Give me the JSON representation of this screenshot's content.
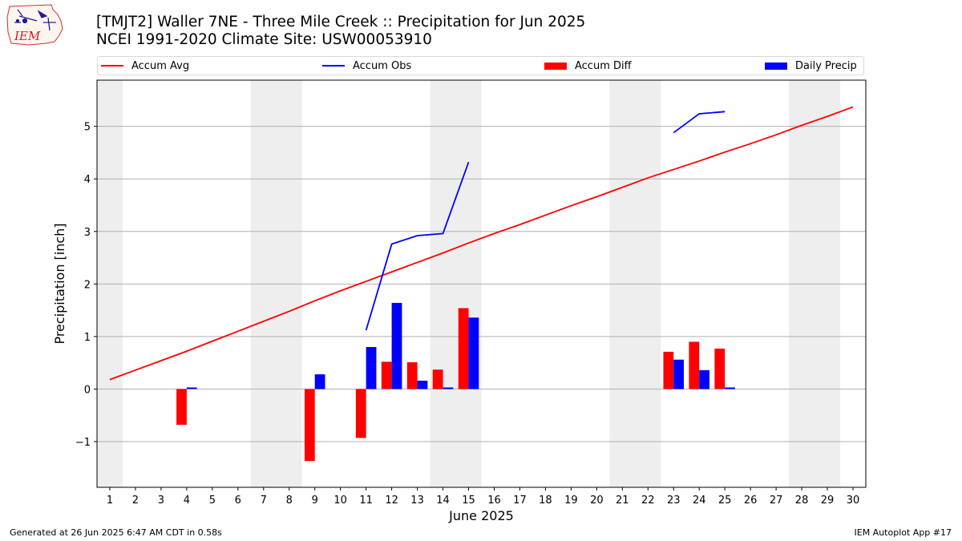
{
  "header": {
    "title_line1": "[TMJT2] Waller 7NE - Three Mile Creek :: Precipitation for Jun 2025",
    "title_line2": "NCEI 1991-2020 Climate Site: USW00053910",
    "logo_text": "IEM"
  },
  "footer": {
    "generated": "Generated at 26 Jun 2025 6:47 AM CDT in 0.58s",
    "app": "IEM Autoplot App #17"
  },
  "colors": {
    "accum_avg": "#ff0000",
    "accum_obs": "#0000ff",
    "accum_diff": "#ff0000",
    "daily_precip": "#0000ff",
    "weekend_shade": "#eeeeee",
    "grid": "#b0b0b0"
  },
  "chart_data": {
    "type": "bar",
    "xlabel": "June 2025",
    "ylabel": "Precipitation [inch]",
    "x": [
      1,
      2,
      3,
      4,
      5,
      6,
      7,
      8,
      9,
      10,
      11,
      12,
      13,
      14,
      15,
      16,
      17,
      18,
      19,
      20,
      21,
      22,
      23,
      24,
      25,
      26,
      27,
      28,
      29,
      30
    ],
    "xlim": [
      0.5,
      30.5
    ],
    "ylim": [
      -1.87,
      5.88
    ],
    "yticks": [
      -1,
      0,
      1,
      2,
      3,
      4,
      5
    ],
    "ytick_labels": [
      "−1",
      "0",
      "1",
      "2",
      "3",
      "4",
      "5"
    ],
    "grid": "horizontal",
    "legend": "top",
    "shaded_weekends": [
      [
        0.5,
        1.5
      ],
      [
        6.5,
        8.5
      ],
      [
        13.5,
        15.5
      ],
      [
        20.5,
        22.5
      ],
      [
        27.5,
        29.5
      ]
    ],
    "series": [
      {
        "name": "Accum Avg",
        "kind": "line",
        "values": [
          0.18,
          0.36,
          0.54,
          0.72,
          0.91,
          1.1,
          1.29,
          1.48,
          1.68,
          1.87,
          2.05,
          2.23,
          2.41,
          2.59,
          2.78,
          2.96,
          3.13,
          3.31,
          3.49,
          3.66,
          3.84,
          4.02,
          4.18,
          4.34,
          4.51,
          4.67,
          4.84,
          5.02,
          5.19,
          5.37
        ]
      },
      {
        "name": "Accum Obs",
        "kind": "line",
        "values": [
          null,
          null,
          null,
          null,
          null,
          null,
          null,
          null,
          null,
          null,
          1.12,
          2.76,
          2.92,
          2.96,
          4.32,
          null,
          null,
          null,
          null,
          null,
          null,
          null,
          4.88,
          5.24,
          5.28,
          null,
          null,
          null,
          null,
          null
        ]
      },
      {
        "name": "Accum Diff",
        "kind": "bar",
        "values": [
          null,
          null,
          null,
          -0.68,
          null,
          null,
          null,
          null,
          -1.37,
          null,
          -0.93,
          0.52,
          0.51,
          0.37,
          1.54,
          null,
          null,
          null,
          null,
          null,
          null,
          null,
          0.71,
          0.9,
          0.77,
          null,
          null,
          null,
          null,
          null
        ]
      },
      {
        "name": "Daily Precip",
        "kind": "bar",
        "values": [
          null,
          null,
          null,
          0.03,
          null,
          null,
          null,
          null,
          0.28,
          null,
          0.8,
          1.64,
          0.16,
          0.03,
          1.36,
          null,
          null,
          null,
          null,
          null,
          null,
          null,
          0.56,
          0.36,
          0.03,
          null,
          null,
          null,
          null,
          null
        ]
      }
    ]
  }
}
